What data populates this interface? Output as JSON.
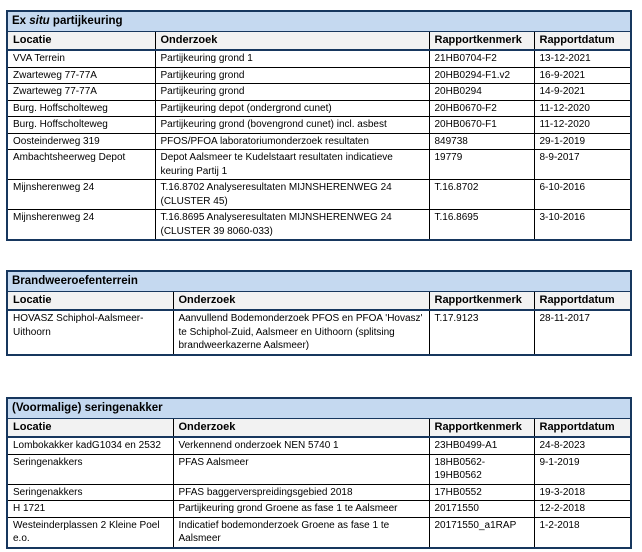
{
  "style": {
    "frame_border": "#17375E",
    "grid_line": "#000000",
    "title_bg": "#C5D9F0",
    "header_bg": "#F2F2F2",
    "page_bg": "#FFFFFF"
  },
  "columns": [
    "Locatie",
    "Onderzoek",
    "Rapportkenmerk",
    "Rapportdatum"
  ],
  "tables": [
    {
      "title": "Ex situ partijkeuring",
      "title_parts": [
        {
          "text": "Ex ",
          "italic": false
        },
        {
          "text": "situ",
          "italic": true
        },
        {
          "text": " partijkeuring",
          "italic": false
        }
      ],
      "rows": [
        [
          "VVA Terrein",
          "Partijkeuring grond 1",
          "21HB0704-F2",
          "13-12-2021"
        ],
        [
          "Zwarteweg 77-77A",
          "Partijkeuring grond",
          "20HB0294-F1.v2",
          "16-9-2021"
        ],
        [
          "Zwarteweg 77-77A",
          "Partijkeuring grond",
          "20HB0294",
          "14-9-2021"
        ],
        [
          "Burg. Hoffscholteweg",
          "Partijkeuring depot (ondergrond cunet)",
          "20HB0670-F2",
          "11-12-2020"
        ],
        [
          "Burg. Hoffscholteweg",
          "Partijkeuring grond (bovengrond cunet) incl. asbest",
          "20HB0670-F1",
          "11-12-2020"
        ],
        [
          "Oosteinderweg 319",
          "PFOS/PFOA laboratoriumonderzoek resultaten",
          "849738",
          "29-1-2019"
        ],
        [
          "Ambachtsheerweg Depot",
          "Depot Aalsmeer te Kudelstaart resultaten indicatieve keuring Partij 1",
          "19779",
          "8-9-2017"
        ],
        [
          "Mijnsherenweg 24",
          "T.16.8702 Analyseresultaten MIJNSHERENWEG 24 (CLUSTER 45)",
          "T.16.8702",
          "6-10-2016"
        ],
        [
          "Mijnsherenweg 24",
          "T.16.8695 Analyseresultaten MIJNSHERENWEG 24 (CLUSTER 39 8060-033)",
          "T.16.8695",
          "3-10-2016"
        ]
      ]
    },
    {
      "title": "Brandweeroefenterrein",
      "title_parts": [
        {
          "text": "Brandweeroefenterrein",
          "italic": false
        }
      ],
      "rows": [
        [
          "HOVASZ Schiphol-Aalsmeer-Uithoorn",
          "Aanvullend Bodemonderzoek PFOS en PFOA 'Hovasz' te Schiphol-Zuid, Aalsmeer en Uithoorn (splitsing brandweerkazerne Aalsmeer)",
          "T.17.9123",
          "28-11-2017"
        ]
      ]
    },
    {
      "title": "(Voormalige) seringenakker",
      "title_parts": [
        {
          "text": "(Voormalige) seringenakker",
          "italic": false
        }
      ],
      "rows": [
        [
          "Lombokakker kadG1034 en 2532",
          "Verkennend onderzoek NEN 5740 1",
          "23HB0499-A1",
          "24-8-2023"
        ],
        [
          "Seringenakkers",
          "PFAS Aalsmeer",
          "18HB0562-19HB0562",
          "9-1-2019"
        ],
        [
          "Seringenakkers",
          "PFAS baggerverspreidingsgebied 2018",
          "17HB0552",
          "19-3-2018"
        ],
        [
          "H 1721",
          "Partijkeuring grond Groene as fase 1 te Aalsmeer",
          "20171550",
          "12-2-2018"
        ],
        [
          "Westeinderplassen 2 Kleine Poel e.o.",
          "Indicatief bodemonderzoek Groene as fase 1 te Aalsmeer",
          "20171550_a1RAP",
          "1-2-2018"
        ]
      ]
    }
  ]
}
